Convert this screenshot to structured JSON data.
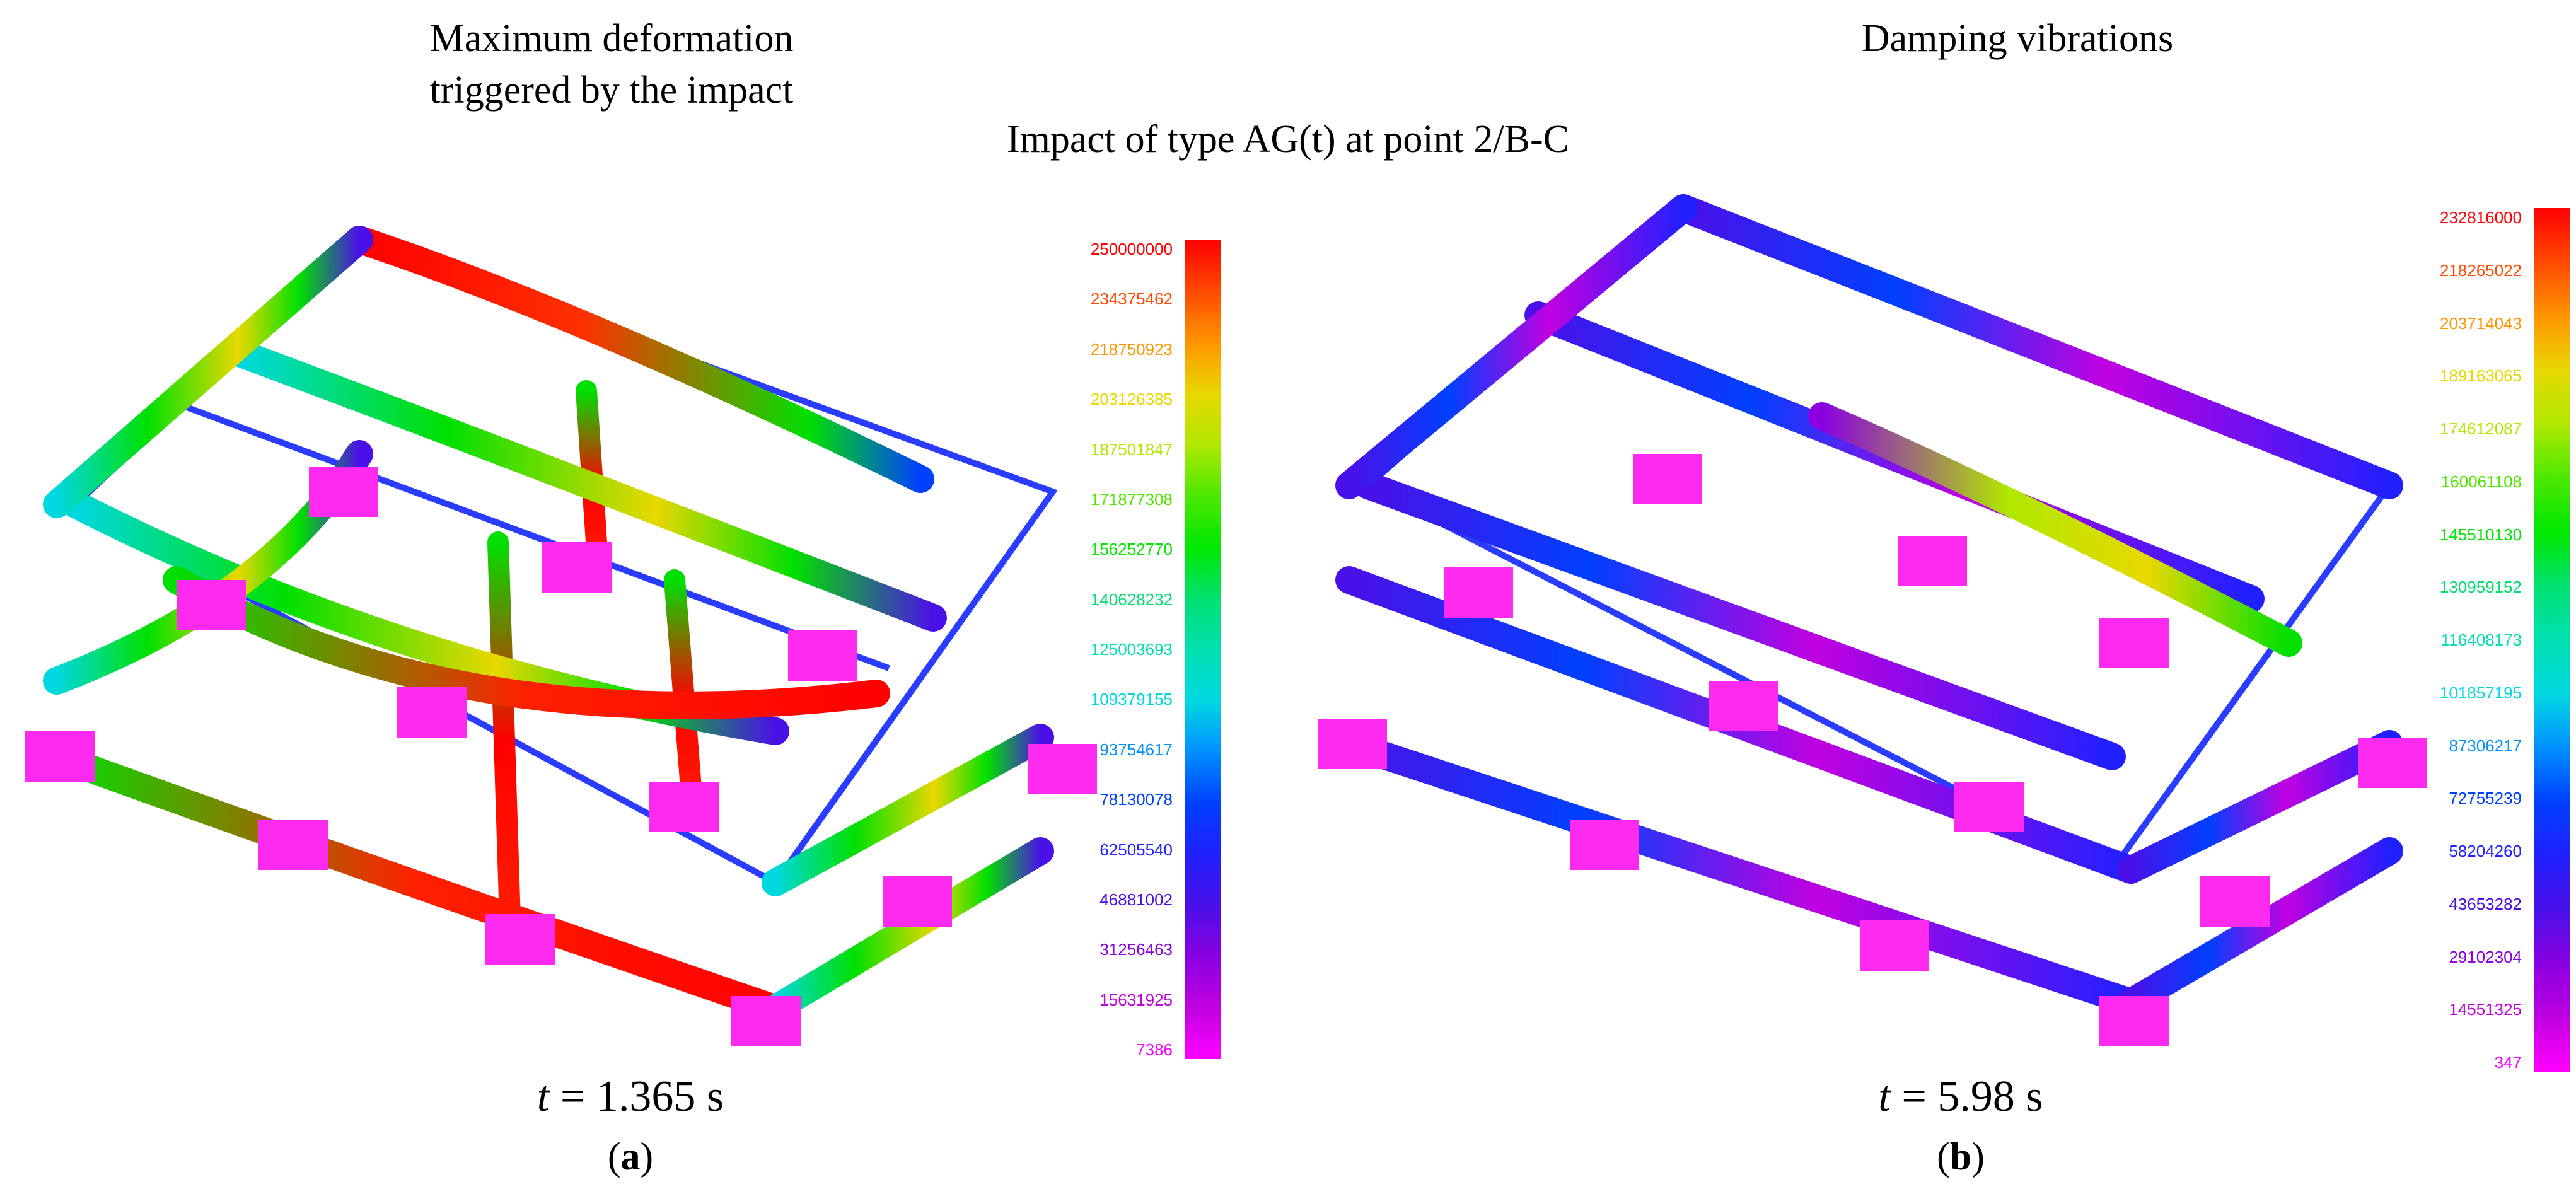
{
  "panel_a": {
    "title_line1": "Maximum deformation",
    "title_line2": "triggered by the impact",
    "time_var": "t",
    "time_rest": " = 1.365 s",
    "label_prefix": "(",
    "label_letter": "a",
    "label_suffix": ")",
    "legend": [
      "250000000",
      "234375462",
      "218750923",
      "203126385",
      "187501847",
      "171877308",
      "156252770",
      "140628232",
      "125003693",
      "109379155",
      "93754617",
      "78130078",
      "62505540",
      "46881002",
      "31256463",
      "15631925",
      "7386"
    ]
  },
  "panel_b": {
    "title": "Damping vibrations",
    "time_var": "t",
    "time_rest": " = 5.98 s",
    "label_prefix": "(",
    "label_letter": "b",
    "label_suffix": ")",
    "legend": [
      "232816000",
      "218265022",
      "203714043",
      "189163065",
      "174612087",
      "160061108",
      "145510130",
      "130959152",
      "116408173",
      "101857195",
      "87306217",
      "72755239",
      "58204260",
      "43653282",
      "29102304",
      "14551325",
      "347"
    ]
  },
  "center_title": "Impact of type AG(t) at point 2/B-C",
  "legend_colors": [
    "#ff0000",
    "#ff4a00",
    "#ff9400",
    "#e8d800",
    "#b0e800",
    "#4ce800",
    "#00e800",
    "#00e070",
    "#00e0b0",
    "#00d8e0",
    "#0090ff",
    "#0040ff",
    "#2020ff",
    "#4a10e8",
    "#8a00e0",
    "#c000e0",
    "#ff00ff"
  ],
  "colors": {
    "frame_outline": "#2a3cff",
    "support": "#ff2af0",
    "support_shadow": "#c010b0"
  }
}
